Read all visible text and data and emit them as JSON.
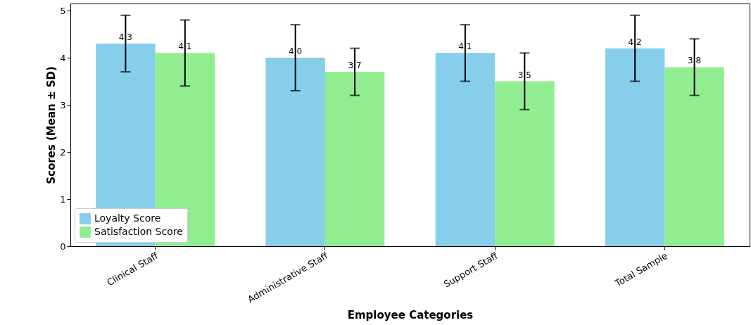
{
  "chart_data": {
    "type": "bar",
    "xlabel": "Employee Categories",
    "ylabel": "Scores (Mean ± SD)",
    "categories": [
      "Clinical Staff",
      "Administrative Staff",
      "Support Staff",
      "Total Sample"
    ],
    "series": [
      {
        "name": "Loyalty Score",
        "color": "#87ceeb",
        "values": [
          4.3,
          4.0,
          4.1,
          4.2
        ],
        "errors": [
          0.6,
          0.7,
          0.6,
          0.7
        ],
        "value_labels": [
          "4.3",
          "4.0",
          "4.1",
          "4.2"
        ]
      },
      {
        "name": "Satisfaction Score",
        "color": "#90ee90",
        "values": [
          4.1,
          3.7,
          3.5,
          3.8
        ],
        "errors": [
          0.7,
          0.5,
          0.6,
          0.6
        ],
        "value_labels": [
          "4.1",
          "3.7",
          "3.5",
          "3.8"
        ]
      }
    ],
    "ylim": [
      0,
      5.15
    ],
    "yticks": [
      0,
      1,
      2,
      3,
      4,
      5
    ],
    "legend": "bottom left",
    "grid": false
  }
}
